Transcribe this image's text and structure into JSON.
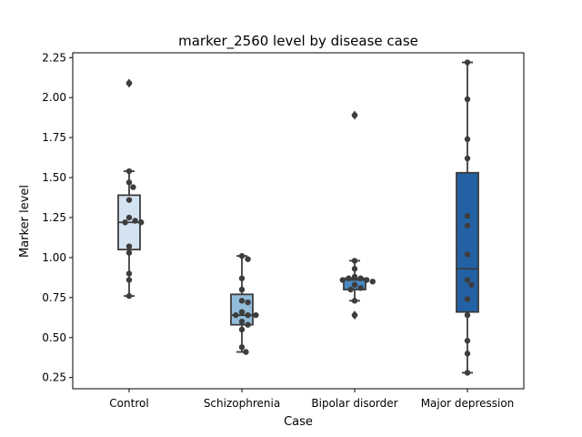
{
  "chart_data": {
    "type": "box",
    "title": "marker_2560 level by disease case",
    "xlabel": "Case",
    "ylabel": "Marker level",
    "ylim": [
      0.18,
      2.28
    ],
    "yticks": [
      0.25,
      0.5,
      0.75,
      1.0,
      1.25,
      1.5,
      1.75,
      2.0,
      2.25
    ],
    "ytick_labels": [
      "0.25",
      "0.50",
      "0.75",
      "1.00",
      "1.25",
      "1.50",
      "1.75",
      "2.00",
      "2.25"
    ],
    "grid": false,
    "legend": "none",
    "categories": [
      "Control",
      "Schizophrenia",
      "Bipolar disorder",
      "Major depression"
    ],
    "colors": [
      "#d4e3f1",
      "#92bcdb",
      "#4a8ac2",
      "#2361a5"
    ],
    "edge_color": "#3c3c3c",
    "point_color": "#3d3d3d",
    "boxes": [
      {
        "category": "Control",
        "whisker_low": 0.76,
        "q1": 1.05,
        "median": 1.22,
        "q3": 1.39,
        "whisker_high": 1.54,
        "outliers": [
          2.09
        ]
      },
      {
        "category": "Schizophrenia",
        "whisker_low": 0.41,
        "q1": 0.58,
        "median": 0.64,
        "q3": 0.77,
        "whisker_high": 1.01,
        "outliers": []
      },
      {
        "category": "Bipolar disorder",
        "whisker_low": 0.73,
        "q1": 0.8,
        "median": 0.86,
        "q3": 0.87,
        "whisker_high": 0.98,
        "outliers": [
          0.64,
          1.89
        ]
      },
      {
        "category": "Major depression",
        "whisker_low": 0.28,
        "q1": 0.66,
        "median": 0.93,
        "q3": 1.53,
        "whisker_high": 2.22,
        "outliers": []
      }
    ],
    "points": [
      [
        2.09,
        1.54,
        1.47,
        1.44,
        1.36,
        1.25,
        1.23,
        1.22,
        1.22,
        1.07,
        1.03,
        0.9,
        0.86,
        0.76
      ],
      [
        1.01,
        0.99,
        0.87,
        0.8,
        0.73,
        0.72,
        0.66,
        0.64,
        0.64,
        0.64,
        0.6,
        0.58,
        0.55,
        0.44,
        0.41
      ],
      [
        1.89,
        0.98,
        0.93,
        0.88,
        0.87,
        0.87,
        0.86,
        0.86,
        0.85,
        0.83,
        0.81,
        0.8,
        0.73,
        0.64
      ],
      [
        2.22,
        1.99,
        1.74,
        1.62,
        1.26,
        1.2,
        1.02,
        0.86,
        0.83,
        0.74,
        0.64,
        0.48,
        0.4,
        0.28
      ]
    ]
  }
}
